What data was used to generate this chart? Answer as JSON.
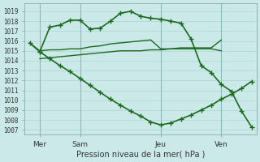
{
  "xlabel": "Pression niveau de la mer( hPa )",
  "bg_color": "#cce9e9",
  "grid_color": "#aad4d4",
  "line_color": "#1a6b1a",
  "ylim": [
    1006.5,
    1019.8
  ],
  "xlim": [
    -0.5,
    22.5
  ],
  "plot_xlim": [
    0,
    22
  ],
  "xtick_positions": [
    1,
    5,
    13,
    19
  ],
  "xtick_labels": [
    "Mer",
    "Sam",
    "Jeu",
    "Ven"
  ],
  "ytick_values": [
    1007,
    1008,
    1009,
    1010,
    1011,
    1012,
    1013,
    1014,
    1015,
    1016,
    1017,
    1018,
    1019
  ],
  "vline_positions": [
    1,
    5,
    13,
    19
  ],
  "series": [
    {
      "x": [
        1,
        2,
        3,
        4,
        5,
        6,
        7,
        8,
        9,
        10,
        11,
        12,
        13,
        14,
        15,
        16,
        17,
        18,
        19,
        20,
        21,
        22
      ],
      "y": [
        1014.9,
        1017.4,
        1017.6,
        1018.1,
        1018.1,
        1017.2,
        1017.3,
        1018.0,
        1018.8,
        1019.0,
        1018.5,
        1018.3,
        1018.2,
        1018.0,
        1017.8,
        1016.2,
        1013.5,
        1012.8,
        1011.6,
        1010.9,
        1008.9,
        1007.3
      ],
      "marker": "+",
      "lw": 1.2,
      "ms": 4,
      "mew": 1.0
    },
    {
      "x": [
        0,
        1,
        2,
        3,
        4,
        5,
        6,
        7,
        8,
        9,
        10,
        11,
        12,
        13,
        14,
        15,
        16,
        17,
        18,
        19,
        20,
        21,
        22
      ],
      "y": [
        1015.8,
        1014.9,
        1014.2,
        1013.5,
        1012.9,
        1012.2,
        1011.5,
        1010.8,
        1010.1,
        1009.5,
        1008.9,
        1008.4,
        1007.8,
        1007.5,
        1007.7,
        1008.1,
        1008.5,
        1009.0,
        1009.5,
        1010.1,
        1010.6,
        1011.2,
        1011.9
      ],
      "marker": "+",
      "lw": 1.2,
      "ms": 4,
      "mew": 1.0
    },
    {
      "x": [
        0,
        1,
        2,
        3,
        4,
        5,
        6,
        7,
        8,
        9,
        10,
        11,
        12,
        13,
        14,
        15,
        16,
        17,
        18,
        19
      ],
      "y": [
        1015.8,
        1015.0,
        1015.1,
        1015.1,
        1015.2,
        1015.2,
        1015.4,
        1015.5,
        1015.7,
        1015.8,
        1015.9,
        1016.0,
        1016.1,
        1015.2,
        1015.2,
        1015.3,
        1015.3,
        1015.3,
        1015.3,
        1016.1
      ],
      "marker": null,
      "lw": 1.0,
      "ms": 0,
      "mew": 0
    },
    {
      "x": [
        1,
        2,
        3,
        4,
        5,
        6,
        7,
        8,
        9,
        10,
        11,
        12,
        13,
        14,
        15,
        16,
        17,
        18,
        19
      ],
      "y": [
        1014.2,
        1014.3,
        1014.4,
        1014.5,
        1014.6,
        1014.7,
        1014.8,
        1014.9,
        1015.0,
        1015.0,
        1015.0,
        1015.1,
        1015.1,
        1015.2,
        1015.2,
        1015.2,
        1015.2,
        1015.2,
        1015.0
      ],
      "marker": null,
      "lw": 1.0,
      "ms": 0,
      "mew": 0
    }
  ]
}
